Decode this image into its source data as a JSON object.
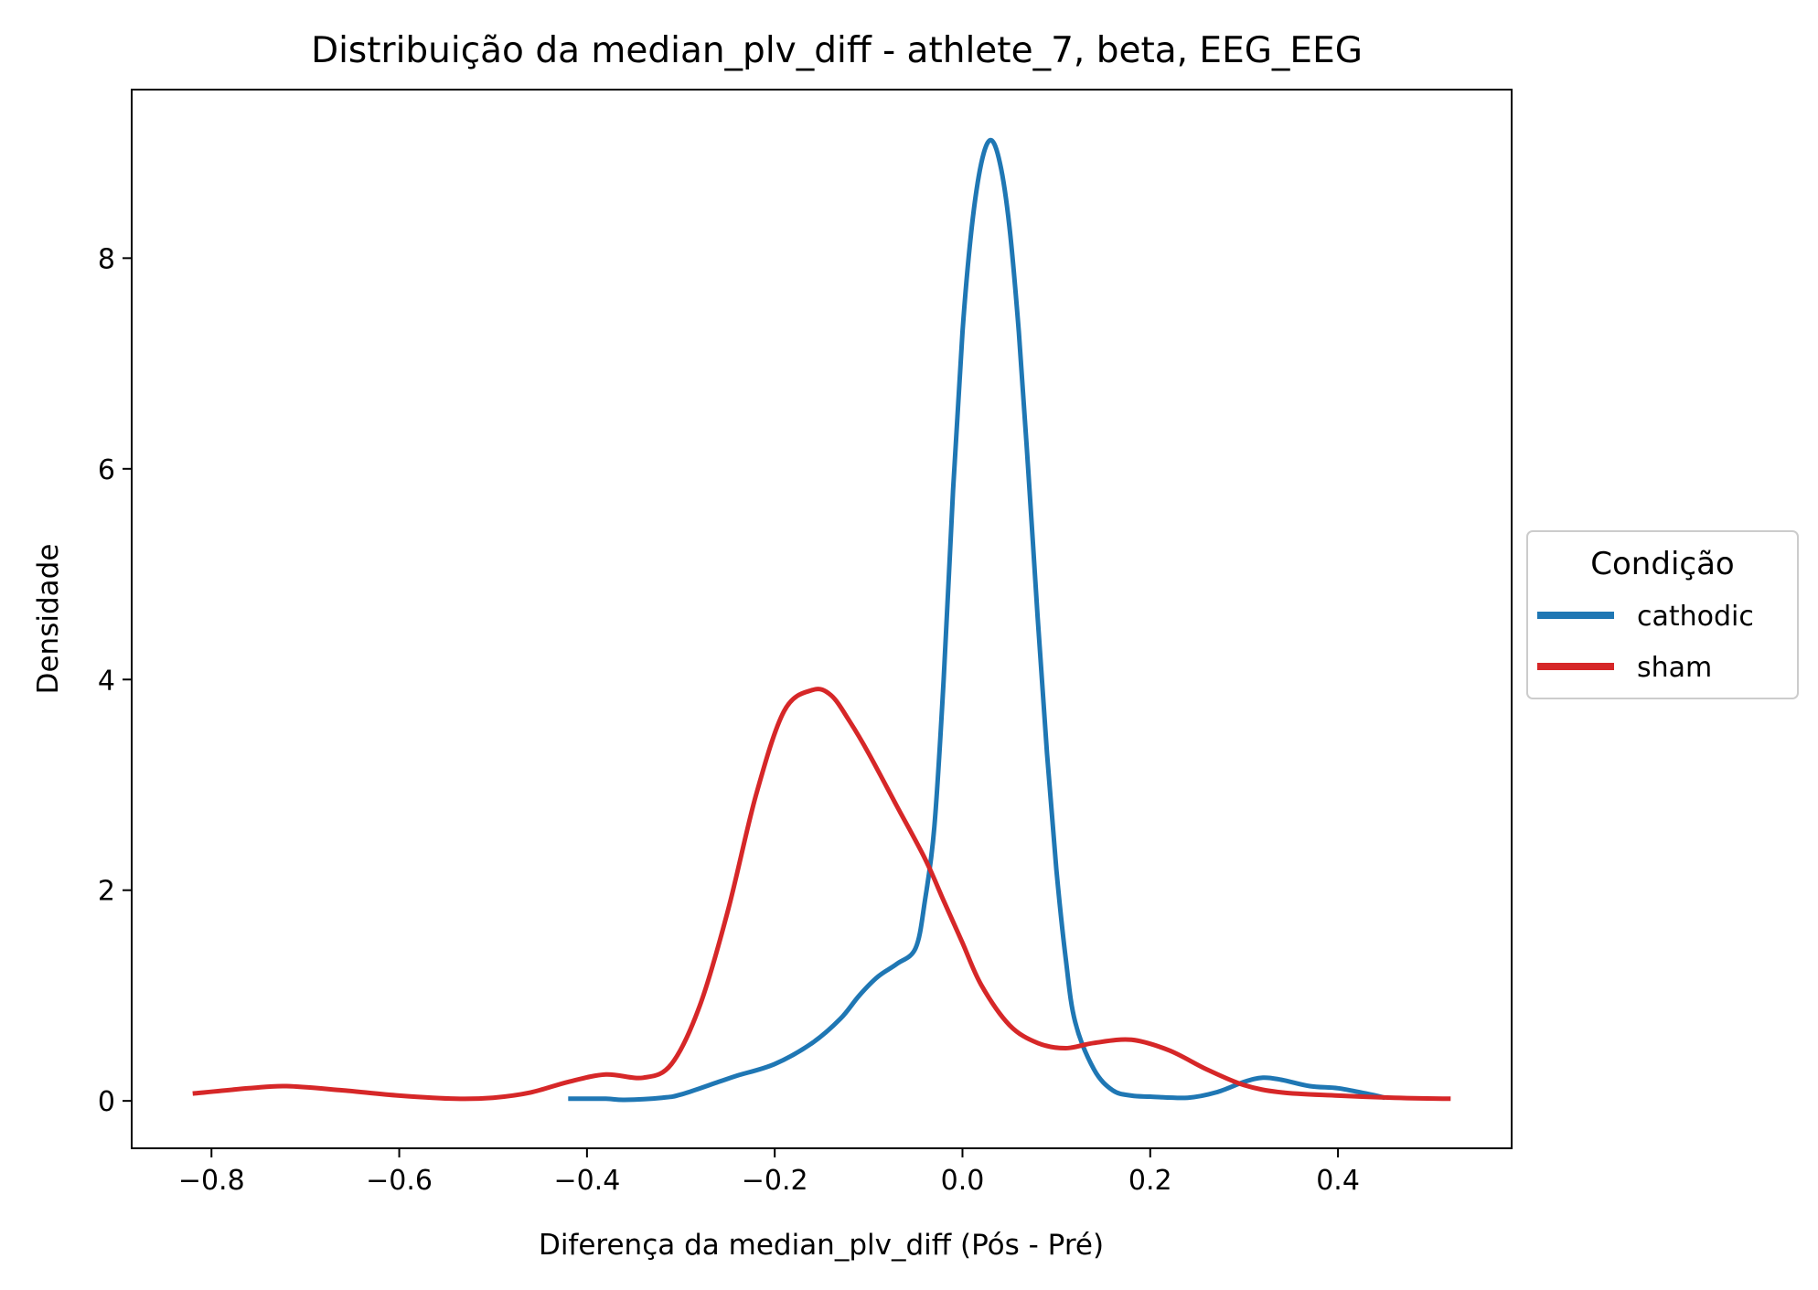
{
  "chart_data": {
    "type": "line",
    "title": "Distribuição da median_plv_diff - athlete_7, beta, EEG_EEG",
    "xlabel": "Diferença da median_plv_diff (Pós - Pré)",
    "ylabel": "Densidade",
    "xlim": [
      -0.885,
      0.585
    ],
    "ylim": [
      -0.45,
      9.6
    ],
    "xticks": [
      -0.8,
      -0.6,
      -0.4,
      -0.2,
      0.0,
      0.2,
      0.4
    ],
    "xtick_labels": [
      "−0.8",
      "−0.6",
      "−0.4",
      "−0.2",
      "0.0",
      "0.2",
      "0.4"
    ],
    "yticks": [
      0,
      2,
      4,
      6,
      8
    ],
    "ytick_labels": [
      "0",
      "2",
      "4",
      "6",
      "8"
    ],
    "grid": false,
    "legend": {
      "title": "Condição",
      "placement": "outside-right",
      "entries": [
        "cathodic",
        "sham"
      ]
    },
    "series": [
      {
        "name": "cathodic",
        "color": "#1f77b4",
        "x": [
          -0.42,
          -0.38,
          -0.36,
          -0.32,
          -0.3,
          -0.26,
          -0.24,
          -0.2,
          -0.16,
          -0.13,
          -0.11,
          -0.09,
          -0.07,
          -0.05,
          -0.04,
          -0.03,
          -0.02,
          -0.01,
          0.0,
          0.01,
          0.02,
          0.03,
          0.04,
          0.05,
          0.06,
          0.07,
          0.08,
          0.09,
          0.1,
          0.11,
          0.12,
          0.14,
          0.16,
          0.18,
          0.2,
          0.24,
          0.27,
          0.3,
          0.32,
          0.34,
          0.37,
          0.4,
          0.43,
          0.45
        ],
        "y": [
          0.02,
          0.02,
          0.01,
          0.03,
          0.06,
          0.18,
          0.24,
          0.35,
          0.55,
          0.78,
          1.0,
          1.18,
          1.3,
          1.45,
          1.9,
          2.6,
          4.0,
          5.8,
          7.3,
          8.3,
          8.9,
          9.12,
          8.9,
          8.3,
          7.3,
          6.0,
          4.6,
          3.3,
          2.2,
          1.35,
          0.75,
          0.3,
          0.1,
          0.05,
          0.04,
          0.03,
          0.08,
          0.18,
          0.22,
          0.2,
          0.14,
          0.12,
          0.07,
          0.03
        ]
      },
      {
        "name": "sham",
        "color": "#d62728",
        "x": [
          -0.82,
          -0.76,
          -0.72,
          -0.66,
          -0.6,
          -0.54,
          -0.5,
          -0.46,
          -0.42,
          -0.38,
          -0.34,
          -0.31,
          -0.28,
          -0.25,
          -0.22,
          -0.19,
          -0.16,
          -0.14,
          -0.12,
          -0.1,
          -0.07,
          -0.04,
          -0.02,
          0.0,
          0.02,
          0.05,
          0.08,
          0.11,
          0.14,
          0.18,
          0.22,
          0.26,
          0.3,
          0.34,
          0.4,
          0.46,
          0.52
        ],
        "y": [
          0.07,
          0.12,
          0.14,
          0.1,
          0.05,
          0.02,
          0.03,
          0.08,
          0.18,
          0.25,
          0.22,
          0.35,
          0.9,
          1.8,
          2.9,
          3.7,
          3.9,
          3.85,
          3.6,
          3.3,
          2.8,
          2.3,
          1.9,
          1.5,
          1.1,
          0.72,
          0.55,
          0.5,
          0.55,
          0.58,
          0.48,
          0.3,
          0.15,
          0.08,
          0.05,
          0.03,
          0.02
        ]
      }
    ]
  }
}
